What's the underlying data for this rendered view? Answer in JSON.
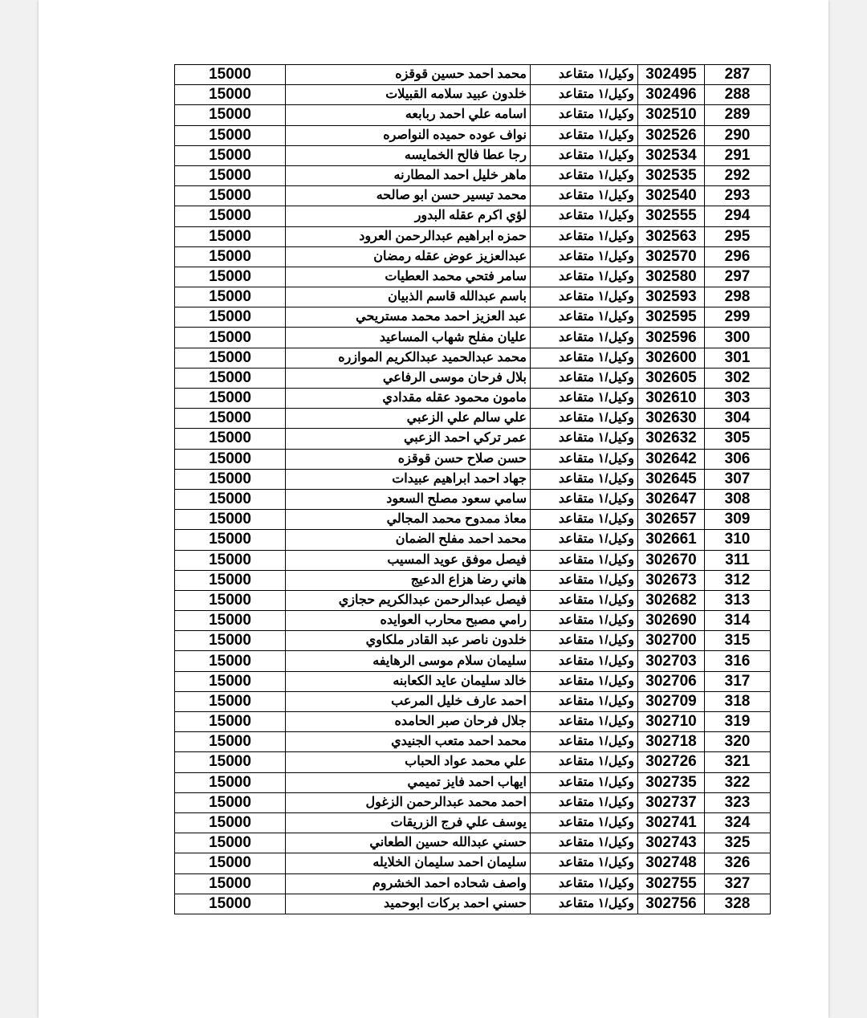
{
  "rows": [
    {
      "serial": "287",
      "number": "302495",
      "rank": "وكيل/١ متقاعد",
      "name": "محمد احمد حسين قوقزه",
      "amount": "15000"
    },
    {
      "serial": "288",
      "number": "302496",
      "rank": "وكيل/١ متقاعد",
      "name": "خلدون عبيد سلامه القبيلات",
      "amount": "15000"
    },
    {
      "serial": "289",
      "number": "302510",
      "rank": "وكيل/١ متقاعد",
      "name": "اسامه علي احمد ربابعه",
      "amount": "15000"
    },
    {
      "serial": "290",
      "number": "302526",
      "rank": "وكيل/١ متقاعد",
      "name": "نواف عوده حميده النواصره",
      "amount": "15000"
    },
    {
      "serial": "291",
      "number": "302534",
      "rank": "وكيل/١ متقاعد",
      "name": "رجا عطا فالح الخمايسه",
      "amount": "15000"
    },
    {
      "serial": "292",
      "number": "302535",
      "rank": "وكيل/١ متقاعد",
      "name": "ماهر خليل احمد المطارنه",
      "amount": "15000"
    },
    {
      "serial": "293",
      "number": "302540",
      "rank": "وكيل/١ متقاعد",
      "name": "محمد تيسير حسن ابو صالحه",
      "amount": "15000"
    },
    {
      "serial": "294",
      "number": "302555",
      "rank": "وكيل/١ متقاعد",
      "name": "لؤي اكرم عقله البدور",
      "amount": "15000"
    },
    {
      "serial": "295",
      "number": "302563",
      "rank": "وكيل/١ متقاعد",
      "name": "حمزه ابراهيم عبدالرحمن العرود",
      "amount": "15000"
    },
    {
      "serial": "296",
      "number": "302570",
      "rank": "وكيل/١ متقاعد",
      "name": "عبدالعزيز عوض عقله رمضان",
      "amount": "15000"
    },
    {
      "serial": "297",
      "number": "302580",
      "rank": "وكيل/١ متقاعد",
      "name": "سامر فتحي محمد العطيات",
      "amount": "15000"
    },
    {
      "serial": "298",
      "number": "302593",
      "rank": "وكيل/١ متقاعد",
      "name": "باسم عبدالله قاسم الذبيان",
      "amount": "15000"
    },
    {
      "serial": "299",
      "number": "302595",
      "rank": "وكيل/١ متقاعد",
      "name": "عبد العزيز احمد محمد مستريحي",
      "amount": "15000"
    },
    {
      "serial": "300",
      "number": "302596",
      "rank": "وكيل/١ متقاعد",
      "name": "عليان مفلح شهاب المساعيد",
      "amount": "15000"
    },
    {
      "serial": "301",
      "number": "302600",
      "rank": "وكيل/١ متقاعد",
      "name": "محمد عبدالحميد عبدالكريم الموازره",
      "amount": "15000"
    },
    {
      "serial": "302",
      "number": "302605",
      "rank": "وكيل/١ متقاعد",
      "name": "بلال فرحان موسى الرفاعي",
      "amount": "15000"
    },
    {
      "serial": "303",
      "number": "302610",
      "rank": "وكيل/١ متقاعد",
      "name": "مامون محمود عقله مقدادي",
      "amount": "15000"
    },
    {
      "serial": "304",
      "number": "302630",
      "rank": "وكيل/١ متقاعد",
      "name": "علي سالم علي الزعبي",
      "amount": "15000"
    },
    {
      "serial": "305",
      "number": "302632",
      "rank": "وكيل/١ متقاعد",
      "name": "عمر تركي احمد الزعبي",
      "amount": "15000"
    },
    {
      "serial": "306",
      "number": "302642",
      "rank": "وكيل/١ متقاعد",
      "name": "حسن صلاح حسن قوقزه",
      "amount": "15000"
    },
    {
      "serial": "307",
      "number": "302645",
      "rank": "وكيل/١ متقاعد",
      "name": "جهاد احمد ابراهيم عبيدات",
      "amount": "15000"
    },
    {
      "serial": "308",
      "number": "302647",
      "rank": "وكيل/١ متقاعد",
      "name": "سامي سعود مصلح السعود",
      "amount": "15000"
    },
    {
      "serial": "309",
      "number": "302657",
      "rank": "وكيل/١ متقاعد",
      "name": "معاذ ممدوح محمد المجالي",
      "amount": "15000"
    },
    {
      "serial": "310",
      "number": "302661",
      "rank": "وكيل/١ متقاعد",
      "name": "محمد احمد مفلح الضمان",
      "amount": "15000"
    },
    {
      "serial": "311",
      "number": "302670",
      "rank": "وكيل/١ متقاعد",
      "name": "فيصل موفق عويد المسيب",
      "amount": "15000"
    },
    {
      "serial": "312",
      "number": "302673",
      "rank": "وكيل/١ متقاعد",
      "name": "هاني رضا هزاع الدعيج",
      "amount": "15000"
    },
    {
      "serial": "313",
      "number": "302682",
      "rank": "وكيل/١ متقاعد",
      "name": "فيصل عبدالرحمن عبدالكريم حجازي",
      "amount": "15000"
    },
    {
      "serial": "314",
      "number": "302690",
      "rank": "وكيل/١ متقاعد",
      "name": "رامي مصبح محارب العوايده",
      "amount": "15000"
    },
    {
      "serial": "315",
      "number": "302700",
      "rank": "وكيل/١ متقاعد",
      "name": "خلدون ناصر عبد القادر ملكاوي",
      "amount": "15000"
    },
    {
      "serial": "316",
      "number": "302703",
      "rank": "وكيل/١ متقاعد",
      "name": "سليمان سلام موسى الرهايفه",
      "amount": "15000"
    },
    {
      "serial": "317",
      "number": "302706",
      "rank": "وكيل/١ متقاعد",
      "name": "خالد سليمان عايد الكعابنه",
      "amount": "15000"
    },
    {
      "serial": "318",
      "number": "302709",
      "rank": "وكيل/١ متقاعد",
      "name": "احمد عارف خليل المرعب",
      "amount": "15000"
    },
    {
      "serial": "319",
      "number": "302710",
      "rank": "وكيل/١ متقاعد",
      "name": "جلال فرحان صبر الحامده",
      "amount": "15000"
    },
    {
      "serial": "320",
      "number": "302718",
      "rank": "وكيل/١ متقاعد",
      "name": "محمد احمد متعب الجنيدي",
      "amount": "15000"
    },
    {
      "serial": "321",
      "number": "302726",
      "rank": "وكيل/١ متقاعد",
      "name": "علي محمد عواد الحباب",
      "amount": "15000"
    },
    {
      "serial": "322",
      "number": "302735",
      "rank": "وكيل/١ متقاعد",
      "name": "ايهاب احمد فايز تميمي",
      "amount": "15000"
    },
    {
      "serial": "323",
      "number": "302737",
      "rank": "وكيل/١ متقاعد",
      "name": "احمد محمد عبدالرحمن الزغول",
      "amount": "15000"
    },
    {
      "serial": "324",
      "number": "302741",
      "rank": "وكيل/١ متقاعد",
      "name": "يوسف علي فرج الزريقات",
      "amount": "15000"
    },
    {
      "serial": "325",
      "number": "302743",
      "rank": "وكيل/١ متقاعد",
      "name": "حسني عبدالله حسين الطعاني",
      "amount": "15000"
    },
    {
      "serial": "326",
      "number": "302748",
      "rank": "وكيل/١ متقاعد",
      "name": "سليمان احمد سليمان الخلايله",
      "amount": "15000"
    },
    {
      "serial": "327",
      "number": "302755",
      "rank": "وكيل/١ متقاعد",
      "name": "واصف شحاده احمد الخشروم",
      "amount": "15000"
    },
    {
      "serial": "328",
      "number": "302756",
      "rank": "وكيل/١ متقاعد",
      "name": "حسني احمد بركات ابوحميد",
      "amount": "15000"
    }
  ]
}
